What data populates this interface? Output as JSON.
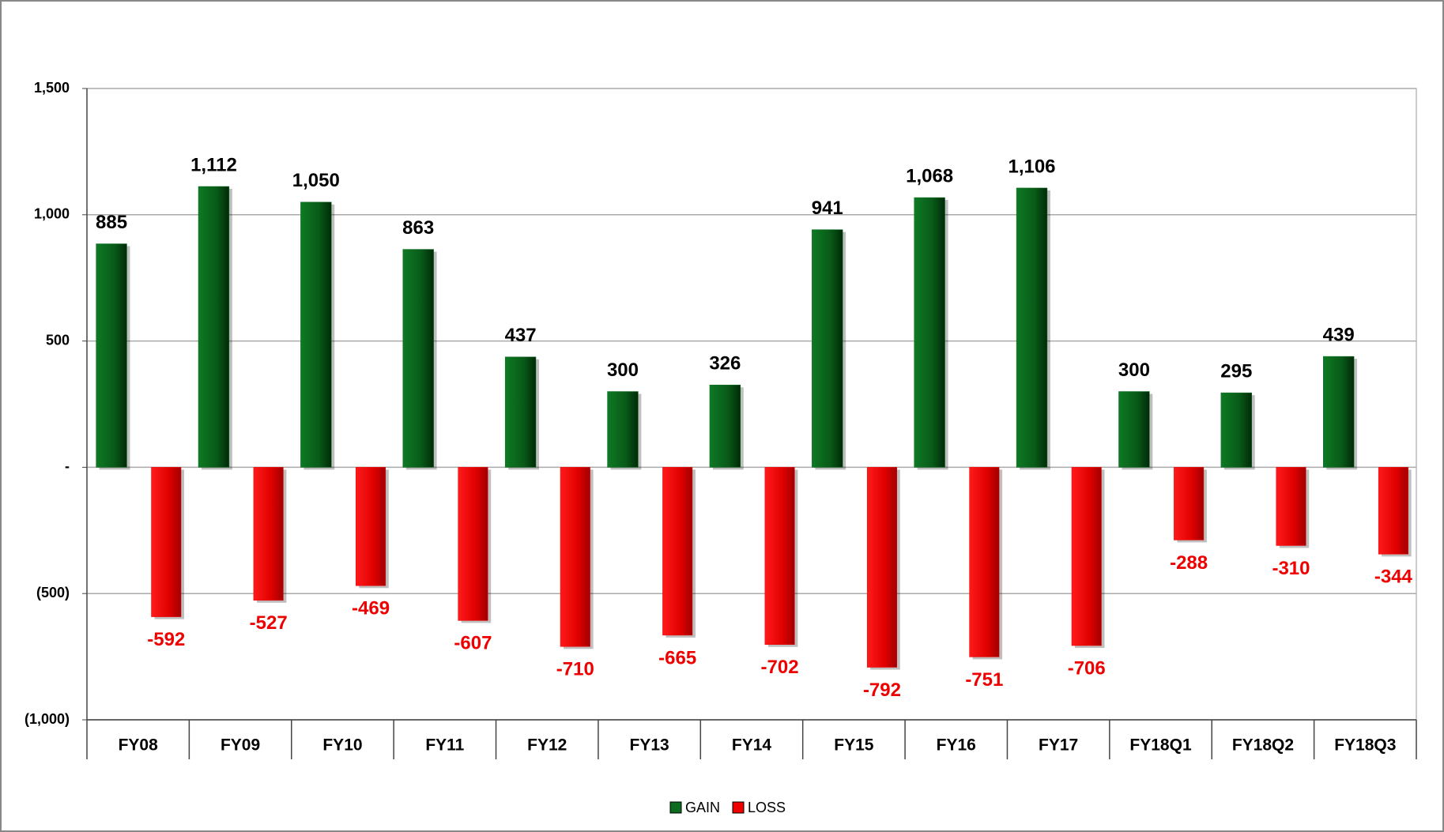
{
  "chart_data": {
    "type": "bar",
    "categories": [
      "FY08",
      "FY09",
      "FY10",
      "FY11",
      "FY12",
      "FY13",
      "FY14",
      "FY15",
      "FY16",
      "FY17",
      "FY18Q1",
      "FY18Q2",
      "FY18Q3"
    ],
    "series": [
      {
        "name": "GAIN",
        "color": "#0b6b1f",
        "values": [
          885,
          1112,
          1050,
          863,
          437,
          300,
          326,
          941,
          1068,
          1106,
          300,
          295,
          439
        ],
        "value_labels": [
          "885",
          "1,112",
          "1,050",
          "863",
          "437",
          "300",
          "326",
          "941",
          "1,068",
          "1,106",
          "300",
          "295",
          "439"
        ]
      },
      {
        "name": "LOSS",
        "color": "#ee0000",
        "values": [
          -592,
          -527,
          -469,
          -607,
          -710,
          -665,
          -702,
          -792,
          -751,
          -706,
          -288,
          -310,
          -344
        ]
      }
    ],
    "ylim": [
      -1000,
      1500
    ],
    "yticks": [
      {
        "value": -1000,
        "label": "(1,000)"
      },
      {
        "value": -500,
        "label": "(500)"
      },
      {
        "value": 0,
        "label": "-"
      },
      500,
      {
        "value": 1000,
        "label": "1,000"
      },
      {
        "value": 1500,
        "label": "1,500"
      }
    ],
    "grid": true,
    "legend": "bottom"
  }
}
